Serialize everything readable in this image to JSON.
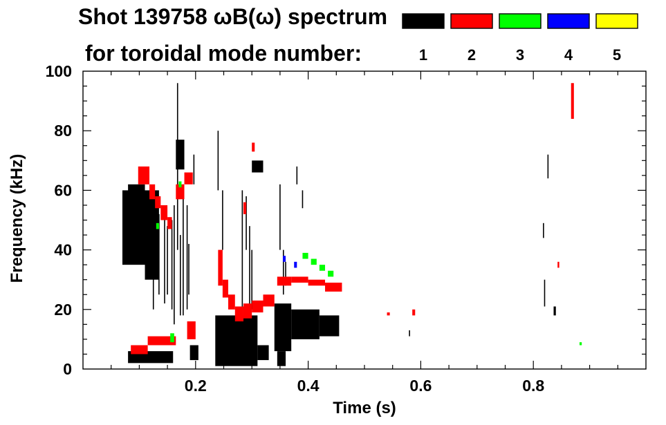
{
  "chart_data": {
    "type": "scatter",
    "title_line1": "Shot 139758 ωB(ω) spectrum",
    "title_line2": "for toroidal mode number:",
    "xlabel": "Time (s)",
    "ylabel": "Frequency (kHz)",
    "xlim": [
      0.0,
      1.0
    ],
    "ylim": [
      0,
      100
    ],
    "x_tick_labels": [
      {
        "value": 0.2,
        "label": "0.2"
      },
      {
        "value": 0.4,
        "label": "0.4"
      },
      {
        "value": 0.6,
        "label": "0.6"
      },
      {
        "value": 0.8,
        "label": "0.8"
      }
    ],
    "y_tick_labels": [
      {
        "value": 0,
        "label": "0"
      },
      {
        "value": 20,
        "label": "20"
      },
      {
        "value": 40,
        "label": "40"
      },
      {
        "value": 60,
        "label": "60"
      },
      {
        "value": 80,
        "label": "80"
      },
      {
        "value": 100,
        "label": "100"
      }
    ],
    "legend": [
      {
        "label": "1",
        "color": "#000000"
      },
      {
        "label": "2",
        "color": "#ff0000"
      },
      {
        "label": "3",
        "color": "#00ff00"
      },
      {
        "label": "4",
        "color": "#0000ff"
      },
      {
        "label": "5",
        "color": "#ffff00"
      }
    ],
    "series": [
      {
        "name": "n=1",
        "color": "#000000",
        "blobs": [
          {
            "t0": 0.07,
            "t1": 0.135,
            "f0": 35,
            "f1": 60
          },
          {
            "t0": 0.08,
            "t1": 0.11,
            "f0": 50,
            "f1": 62
          },
          {
            "t0": 0.11,
            "t1": 0.135,
            "f0": 30,
            "f1": 50
          },
          {
            "t0": 0.08,
            "t1": 0.16,
            "f0": 2,
            "f1": 6
          },
          {
            "t0": 0.165,
            "t1": 0.18,
            "f0": 67,
            "f1": 77
          },
          {
            "t0": 0.19,
            "t1": 0.205,
            "f0": 3,
            "f1": 8
          },
          {
            "t0": 0.235,
            "t1": 0.31,
            "f0": 1,
            "f1": 18
          },
          {
            "t0": 0.31,
            "t1": 0.33,
            "f0": 3,
            "f1": 8
          },
          {
            "t0": 0.3,
            "t1": 0.32,
            "f0": 66,
            "f1": 70
          },
          {
            "t0": 0.34,
            "t1": 0.37,
            "f0": 6,
            "f1": 22
          },
          {
            "t0": 0.37,
            "t1": 0.42,
            "f0": 10,
            "f1": 20
          },
          {
            "t0": 0.42,
            "t1": 0.455,
            "f0": 11,
            "f1": 18
          },
          {
            "t0": 0.345,
            "t1": 0.36,
            "f0": 1,
            "f1": 6
          },
          {
            "t0": 0.836,
            "t1": 0.84,
            "f0": 18,
            "f1": 21
          }
        ],
        "streaks": [
          {
            "t": 0.125,
            "f0": 20,
            "f1": 58
          },
          {
            "t": 0.135,
            "f0": 25,
            "f1": 52
          },
          {
            "t": 0.145,
            "f0": 22,
            "f1": 52
          },
          {
            "t": 0.15,
            "f0": 25,
            "f1": 48
          },
          {
            "t": 0.158,
            "f0": 20,
            "f1": 50
          },
          {
            "t": 0.162,
            "f0": 15,
            "f1": 55
          },
          {
            "t": 0.168,
            "f0": 40,
            "f1": 96
          },
          {
            "t": 0.173,
            "f0": 18,
            "f1": 45
          },
          {
            "t": 0.178,
            "f0": 18,
            "f1": 62
          },
          {
            "t": 0.185,
            "f0": 20,
            "f1": 55
          },
          {
            "t": 0.188,
            "f0": 25,
            "f1": 42
          },
          {
            "t": 0.197,
            "f0": 62,
            "f1": 72
          },
          {
            "t": 0.24,
            "f0": 60,
            "f1": 80
          },
          {
            "t": 0.248,
            "f0": 40,
            "f1": 60
          },
          {
            "t": 0.283,
            "f0": 20,
            "f1": 60
          },
          {
            "t": 0.29,
            "f0": 40,
            "f1": 58
          },
          {
            "t": 0.296,
            "f0": 20,
            "f1": 48
          },
          {
            "t": 0.3,
            "f0": 20,
            "f1": 40
          },
          {
            "t": 0.35,
            "f0": 40,
            "f1": 62
          },
          {
            "t": 0.356,
            "f0": 25,
            "f1": 40
          },
          {
            "t": 0.36,
            "f0": 28,
            "f1": 36
          },
          {
            "t": 0.38,
            "f0": 62,
            "f1": 68
          },
          {
            "t": 0.39,
            "f0": 54,
            "f1": 60
          },
          {
            "t": 0.58,
            "f0": 11,
            "f1": 13
          },
          {
            "t": 0.818,
            "f0": 44,
            "f1": 49
          },
          {
            "t": 0.82,
            "f0": 21,
            "f1": 30
          },
          {
            "t": 0.826,
            "f0": 64,
            "f1": 72
          }
        ]
      },
      {
        "name": "n=2",
        "color": "#ff0000",
        "blobs": [
          {
            "t0": 0.098,
            "t1": 0.118,
            "f0": 62,
            "f1": 68
          },
          {
            "t0": 0.118,
            "t1": 0.128,
            "f0": 57,
            "f1": 62
          },
          {
            "t0": 0.128,
            "t1": 0.138,
            "f0": 54,
            "f1": 58
          },
          {
            "t0": 0.138,
            "t1": 0.15,
            "f0": 50,
            "f1": 55
          },
          {
            "t0": 0.15,
            "t1": 0.158,
            "f0": 47,
            "f1": 51
          },
          {
            "t0": 0.165,
            "t1": 0.18,
            "f0": 57,
            "f1": 62
          },
          {
            "t0": 0.18,
            "t1": 0.195,
            "f0": 62,
            "f1": 66
          },
          {
            "t0": 0.085,
            "t1": 0.115,
            "f0": 5,
            "f1": 8
          },
          {
            "t0": 0.115,
            "t1": 0.165,
            "f0": 8,
            "f1": 11
          },
          {
            "t0": 0.185,
            "t1": 0.2,
            "f0": 10,
            "f1": 16
          },
          {
            "t0": 0.24,
            "t1": 0.248,
            "f0": 28,
            "f1": 40
          },
          {
            "t0": 0.248,
            "t1": 0.258,
            "f0": 24,
            "f1": 30
          },
          {
            "t0": 0.258,
            "t1": 0.27,
            "f0": 20,
            "f1": 25
          },
          {
            "t0": 0.27,
            "t1": 0.285,
            "f0": 16,
            "f1": 21
          },
          {
            "t0": 0.285,
            "t1": 0.3,
            "f0": 17,
            "f1": 22
          },
          {
            "t0": 0.3,
            "t1": 0.32,
            "f0": 19,
            "f1": 23
          },
          {
            "t0": 0.32,
            "t1": 0.34,
            "f0": 21,
            "f1": 25
          },
          {
            "t0": 0.345,
            "t1": 0.37,
            "f0": 28,
            "f1": 31
          },
          {
            "t0": 0.37,
            "t1": 0.4,
            "f0": 29,
            "f1": 31
          },
          {
            "t0": 0.4,
            "t1": 0.43,
            "f0": 28,
            "f1": 30
          },
          {
            "t0": 0.43,
            "t1": 0.46,
            "f0": 26,
            "f1": 29
          },
          {
            "t0": 0.3,
            "t1": 0.305,
            "f0": 73,
            "f1": 76
          },
          {
            "t0": 0.285,
            "t1": 0.29,
            "f0": 52,
            "f1": 56
          },
          {
            "t0": 0.867,
            "t1": 0.872,
            "f0": 84,
            "f1": 96
          },
          {
            "t0": 0.843,
            "t1": 0.846,
            "f0": 34,
            "f1": 36
          },
          {
            "t0": 0.54,
            "t1": 0.545,
            "f0": 18,
            "f1": 19
          },
          {
            "t0": 0.585,
            "t1": 0.59,
            "f0": 18,
            "f1": 20
          }
        ],
        "streaks": []
      },
      {
        "name": "n=3",
        "color": "#00ff00",
        "blobs": [
          {
            "t0": 0.155,
            "t1": 0.162,
            "f0": 9,
            "f1": 12
          },
          {
            "t0": 0.17,
            "t1": 0.175,
            "f0": 61,
            "f1": 63
          },
          {
            "t0": 0.13,
            "t1": 0.135,
            "f0": 47,
            "f1": 49
          },
          {
            "t0": 0.39,
            "t1": 0.4,
            "f0": 37,
            "f1": 39
          },
          {
            "t0": 0.405,
            "t1": 0.415,
            "f0": 35,
            "f1": 37
          },
          {
            "t0": 0.42,
            "t1": 0.43,
            "f0": 33,
            "f1": 35
          },
          {
            "t0": 0.435,
            "t1": 0.445,
            "f0": 31,
            "f1": 33
          },
          {
            "t0": 0.882,
            "t1": 0.886,
            "f0": 8,
            "f1": 9
          }
        ],
        "streaks": []
      },
      {
        "name": "n=4",
        "color": "#0000ff",
        "blobs": [
          {
            "t0": 0.355,
            "t1": 0.36,
            "f0": 36,
            "f1": 38
          },
          {
            "t0": 0.375,
            "t1": 0.38,
            "f0": 34,
            "f1": 36
          }
        ],
        "streaks": []
      }
    ]
  }
}
